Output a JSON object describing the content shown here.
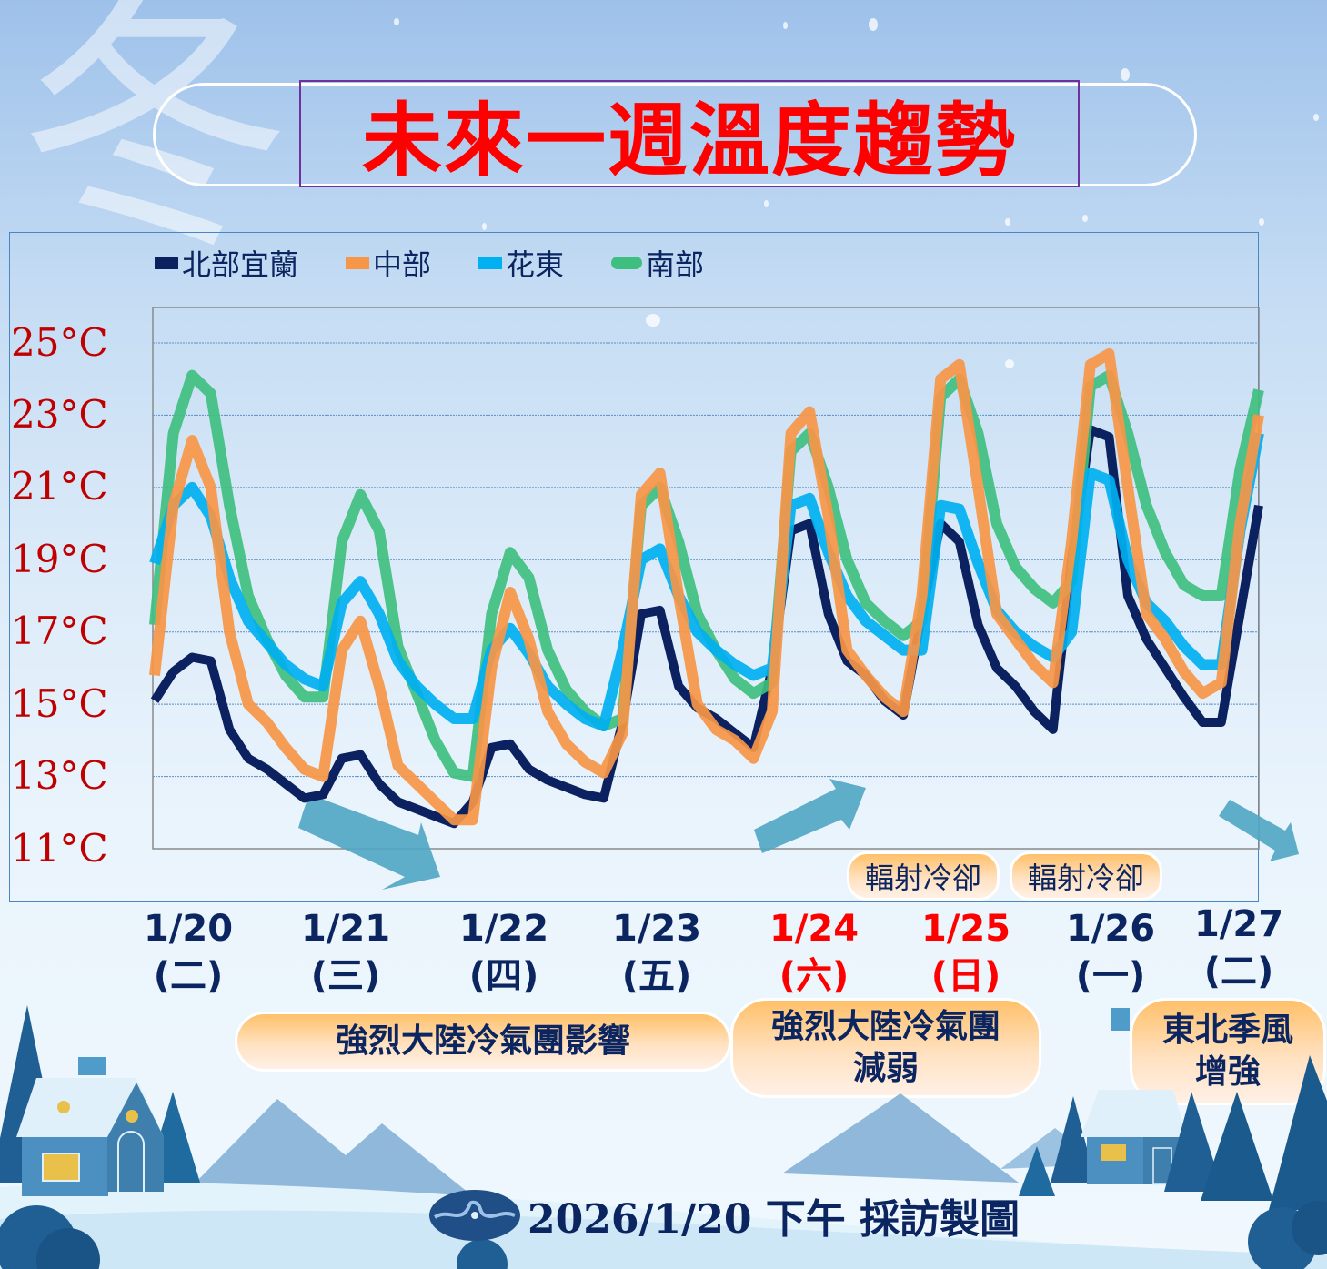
{
  "title": "未來一週溫度趨勢",
  "deco_char": "冬",
  "legend": [
    {
      "label": "北部宜蘭",
      "color": "#0b2160"
    },
    {
      "label": "中部",
      "color": "#f79646"
    },
    {
      "label": "花東",
      "color": "#00b0f0"
    },
    {
      "label": "南部",
      "color": "#3fbf7f"
    }
  ],
  "y_ticks": [
    "25°C",
    "23°C",
    "21°C",
    "19°C",
    "17°C",
    "15°C",
    "13°C",
    "11°C"
  ],
  "x_labels": [
    {
      "date": "1/20",
      "day": "(二)",
      "holiday": false
    },
    {
      "date": "1/21",
      "day": "(三)",
      "holiday": false
    },
    {
      "date": "1/22",
      "day": "(四)",
      "holiday": false
    },
    {
      "date": "1/23",
      "day": "(五)",
      "holiday": false
    },
    {
      "date": "1/24",
      "day": "(六)",
      "holiday": true
    },
    {
      "date": "1/25",
      "day": "(日)",
      "holiday": true
    },
    {
      "date": "1/26",
      "day": "(一)",
      "holiday": false
    },
    {
      "date": "1/27",
      "day": "(二)",
      "holiday": false
    }
  ],
  "annotations": {
    "radiative_cooling_1": "輻射冷卻",
    "radiative_cooling_2": "輻射冷卻",
    "phase_1": "強烈大陸冷氣團影響",
    "phase_2_line1": "強烈大陸冷氣團",
    "phase_2_line2": "減弱",
    "phase_3_line1": "東北季風",
    "phase_3_line2": "增強"
  },
  "footer": {
    "text": "2026/1/20 下午 採訪製圖"
  },
  "chart_data": {
    "type": "line",
    "title": "未來一週溫度趨勢",
    "xlabel": "",
    "ylabel": "°C",
    "ylim": [
      11,
      25
    ],
    "y_ticks": [
      25,
      23,
      21,
      19,
      17,
      15,
      13,
      11
    ],
    "grid": true,
    "legend_position": "top",
    "categories": [
      "1/20(二)",
      "1/21(三)",
      "1/22(四)",
      "1/23(五)",
      "1/24(六)",
      "1/25(日)",
      "1/26(一)",
      "1/27(二)"
    ],
    "x_note": "3-hourly points, ~8 per day, spanning 1/20 to 1/27",
    "series": [
      {
        "name": "北部宜蘭",
        "color": "#0b2160",
        "values": [
          15.1,
          15.9,
          16.3,
          16.2,
          14.3,
          13.5,
          13.2,
          12.8,
          12.4,
          12.5,
          13.5,
          13.6,
          12.8,
          12.3,
          12.1,
          11.9,
          11.7,
          12.3,
          13.8,
          13.9,
          13.2,
          12.9,
          12.7,
          12.5,
          12.4,
          14.5,
          17.5,
          17.6,
          15.5,
          14.9,
          14.6,
          14.2,
          13.8,
          16.0,
          19.8,
          20.0,
          17.5,
          16.2,
          15.8,
          15.1,
          14.7,
          17.5,
          20.0,
          19.5,
          17.2,
          16.0,
          15.5,
          14.8,
          14.3,
          19.0,
          22.6,
          22.4,
          18.0,
          16.8,
          16.0,
          15.2,
          14.5,
          14.5,
          17.5,
          20.5
        ]
      },
      {
        "name": "中部",
        "color": "#f79646",
        "values": [
          15.8,
          20.5,
          22.3,
          21.0,
          17.0,
          15.0,
          14.5,
          13.8,
          13.2,
          13.0,
          16.5,
          17.3,
          15.5,
          13.3,
          12.8,
          12.3,
          11.8,
          11.8,
          16.0,
          18.1,
          16.8,
          14.8,
          13.9,
          13.4,
          13.1,
          14.2,
          20.8,
          21.4,
          18.0,
          15.0,
          14.3,
          14.0,
          13.5,
          14.8,
          22.5,
          23.1,
          20.2,
          16.5,
          15.8,
          15.2,
          14.8,
          18.0,
          24.0,
          24.4,
          21.0,
          17.5,
          16.8,
          16.1,
          15.6,
          19.5,
          24.4,
          24.7,
          21.0,
          17.5,
          16.8,
          15.9,
          15.3,
          15.6,
          20.0,
          23.0
        ]
      },
      {
        "name": "花東",
        "color": "#00b0f0",
        "values": [
          18.9,
          20.5,
          21.0,
          20.2,
          18.5,
          17.3,
          16.7,
          16.1,
          15.7,
          15.5,
          17.8,
          18.4,
          17.5,
          16.2,
          15.5,
          15.0,
          14.6,
          14.6,
          16.5,
          17.1,
          16.4,
          15.5,
          15.0,
          14.6,
          14.4,
          16.5,
          19.0,
          19.3,
          18.0,
          17.0,
          16.5,
          16.1,
          15.8,
          16.0,
          20.5,
          20.7,
          19.2,
          18.0,
          17.3,
          16.9,
          16.5,
          16.5,
          20.5,
          20.4,
          18.9,
          17.6,
          17.0,
          16.6,
          16.3,
          17.0,
          21.4,
          21.2,
          19.0,
          17.8,
          17.3,
          16.6,
          16.1,
          16.1,
          19.8,
          22.5
        ]
      },
      {
        "name": "南部",
        "color": "#3fbf7f",
        "values": [
          17.2,
          22.5,
          24.1,
          23.6,
          20.5,
          18.0,
          16.8,
          15.8,
          15.2,
          15.2,
          19.5,
          20.8,
          19.8,
          16.6,
          15.3,
          14.0,
          13.1,
          13.0,
          17.5,
          19.2,
          18.5,
          16.5,
          15.4,
          14.8,
          14.4,
          14.6,
          20.5,
          21.0,
          19.5,
          17.5,
          16.5,
          15.7,
          15.3,
          15.6,
          22.0,
          22.5,
          21.0,
          19.0,
          17.8,
          17.3,
          16.9,
          17.3,
          23.5,
          24.0,
          22.5,
          20.0,
          18.8,
          18.2,
          17.8,
          18.4,
          23.8,
          24.1,
          22.5,
          20.5,
          19.2,
          18.3,
          18.0,
          18.0,
          21.5,
          23.7
        ]
      }
    ]
  }
}
